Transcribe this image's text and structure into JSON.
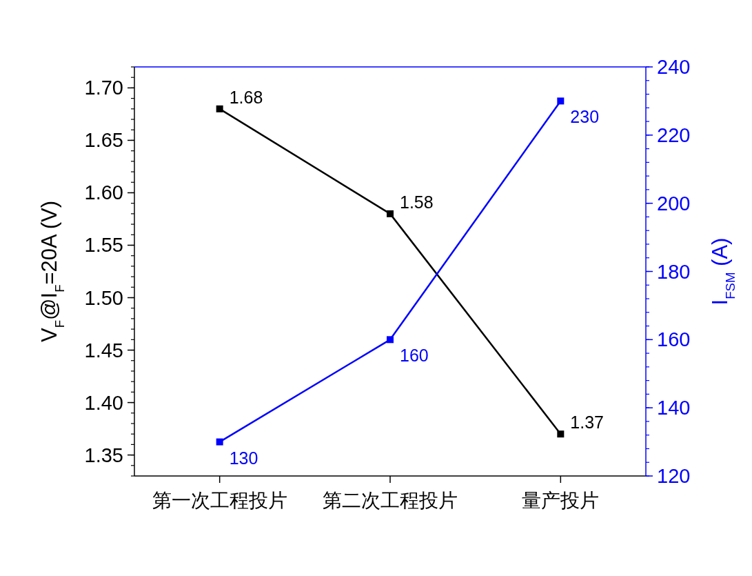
{
  "chart_data": {
    "type": "line",
    "categories": [
      "第一次工程投片",
      "第二次工程投片",
      "量产投片"
    ],
    "ylabel": "V$_{F}$@I$_{F}$=20A (V)",
    "y2label": "I$_{FSM}$ (A)",
    "ylim": [
      1.33,
      1.72
    ],
    "yticks": [
      1.35,
      {
        "value": 1.4,
        "label": "1.40"
      },
      1.45,
      {
        "value": 1.5,
        "label": "1.50"
      },
      1.55,
      {
        "value": 1.6,
        "label": "1.60"
      },
      1.65,
      {
        "value": 1.7,
        "label": "1.70"
      }
    ],
    "y2lim": [
      120,
      240
    ],
    "y2ticks": [
      120,
      140,
      160,
      180,
      200,
      220,
      240
    ],
    "series": [
      {
        "color": "#000000",
        "values": [
          1.68,
          1.58,
          1.37
        ]
      },
      {
        "color": "#0000ff",
        "values": [
          130,
          160,
          230
        ],
        "axis": "y2"
      }
    ],
    "marker": "square",
    "data_labels": true
  }
}
